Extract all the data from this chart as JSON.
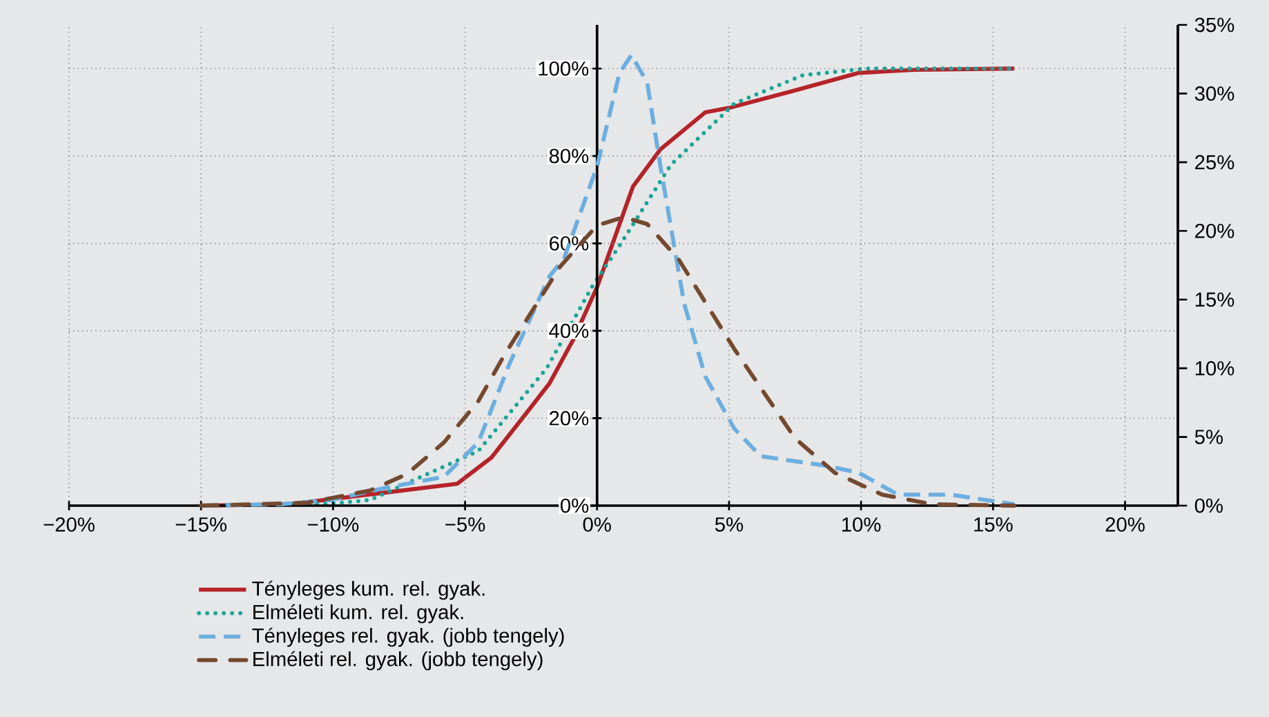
{
  "chart_data": {
    "type": "line",
    "xlim": [
      -20,
      22
    ],
    "ylim": [
      0,
      110
    ],
    "y2lim": [
      0,
      35
    ],
    "xticks": [
      {
        "value": -20,
        "label": "−20%"
      },
      {
        "value": -15,
        "label": "−15%"
      },
      {
        "value": -10,
        "label": "−10%"
      },
      {
        "value": -5,
        "label": "−5%"
      },
      {
        "value": 0,
        "label": "0%"
      },
      {
        "value": 5,
        "label": "5%"
      },
      {
        "value": 10,
        "label": "10%"
      },
      {
        "value": 15,
        "label": "15%"
      },
      {
        "value": 20,
        "label": "20%"
      }
    ],
    "yticks": [
      {
        "value": 0,
        "label": "0%"
      },
      {
        "value": 20,
        "label": "20%"
      },
      {
        "value": 40,
        "label": "40%"
      },
      {
        "value": 60,
        "label": "60%"
      },
      {
        "value": 80,
        "label": "80%"
      },
      {
        "value": 100,
        "label": "100%"
      }
    ],
    "y2ticks": [
      {
        "value": 0,
        "label": "0%"
      },
      {
        "value": 5,
        "label": "5%"
      },
      {
        "value": 10,
        "label": "10%"
      },
      {
        "value": 15,
        "label": "15%"
      },
      {
        "value": 20,
        "label": "20%"
      },
      {
        "value": 25,
        "label": "25%"
      },
      {
        "value": 30,
        "label": "30%"
      },
      {
        "value": 35,
        "label": "35%"
      }
    ],
    "grid": true,
    "legend": "bottom",
    "marker": "none",
    "series": [
      {
        "name": "Tényleges kum. rel. gyak.",
        "color": "#b5232a",
        "line_style": "solid",
        "x": [
          -15,
          -11.7,
          -8,
          -5.3,
          -4,
          -2.7,
          -1.8,
          -0.9,
          0,
          1.36,
          2.4,
          4.1,
          5,
          7.5,
          9.9,
          12,
          15.8
        ],
        "values": [
          0,
          0.3,
          3,
          5,
          11,
          21,
          28,
          38,
          50,
          73,
          81.5,
          90,
          91,
          95,
          99,
          99.7,
          100
        ]
      },
      {
        "name": "Elméleti kum. rel. gyak.",
        "color": "#1aa597",
        "line_style": "dotted",
        "x": [
          -15,
          -10,
          -8.6,
          -4.5,
          -1.9,
          -0.2,
          0.8,
          2.8,
          5.2,
          7.8,
          10.2,
          15.8
        ],
        "values": [
          0,
          0.5,
          1.3,
          12.5,
          31.5,
          50,
          59,
          78,
          92,
          98.5,
          100,
          100
        ]
      },
      {
        "name": "Tényleges rel. gyak. (jobb tengely)",
        "color": "#6caee0",
        "line_style": "dashed",
        "axis": "y2",
        "x": [
          -15,
          -12,
          -10.1,
          -8,
          -5.8,
          -4.5,
          -3.3,
          -1.8,
          -1.25,
          0,
          0.85,
          1.3,
          1.9,
          2.4,
          3.3,
          4.1,
          5.2,
          6.2,
          8.7,
          9.9,
          11.4,
          13.4,
          15.8
        ],
        "values": [
          0,
          0.1,
          0.4,
          1.3,
          2.1,
          4.6,
          10.4,
          16.7,
          18,
          24.7,
          31.5,
          32.8,
          30.8,
          24.7,
          14.7,
          9.4,
          5.6,
          3.6,
          2.9,
          2.4,
          0.8,
          0.8,
          0.1
        ]
      },
      {
        "name": "Elméleti rel. gyak. (jobb tengely)",
        "color": "#73492f",
        "line_style": "dashdot",
        "axis": "y2",
        "x": [
          -15,
          -11,
          -8.6,
          -7.2,
          -5.8,
          -4.5,
          -3.5,
          -1.4,
          0,
          1.0,
          1.9,
          3.1,
          5.2,
          7.5,
          9.0,
          10.8,
          12.7,
          15.8
        ],
        "values": [
          0,
          0.2,
          1.1,
          2.3,
          4.6,
          7.6,
          11,
          17.4,
          20.4,
          21,
          20.5,
          17.9,
          11.4,
          4.9,
          2.4,
          0.8,
          0.1,
          0
        ]
      }
    ]
  }
}
